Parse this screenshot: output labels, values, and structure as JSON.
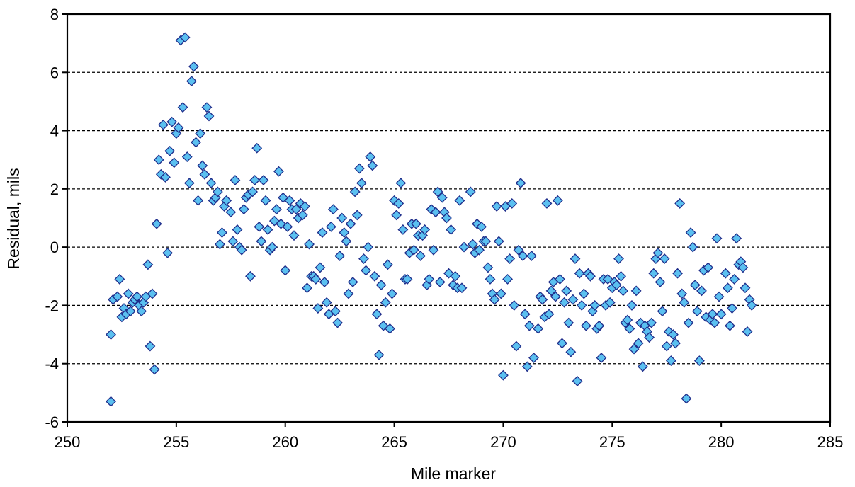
{
  "chart_data": {
    "type": "scatter",
    "xlabel": "Mile marker",
    "ylabel": "Residual, mils",
    "xlim": [
      250,
      285
    ],
    "ylim": [
      -6,
      8
    ],
    "xticks": [
      250,
      255,
      260,
      265,
      270,
      275,
      280,
      285
    ],
    "yticks": [
      -6,
      -4,
      -2,
      0,
      2,
      4,
      6,
      8
    ],
    "grid": "horizontal dashed at major y ticks (inner)",
    "legend": "none",
    "marker": "diamond",
    "colors": {
      "fill": "#5BC0F0",
      "stroke": "#1F2D8A"
    },
    "series": [
      {
        "points": [
          [
            252.0,
            -5.3
          ],
          [
            252.0,
            -3.0
          ],
          [
            252.1,
            -1.8
          ],
          [
            252.3,
            -1.7
          ],
          [
            252.4,
            -1.1
          ],
          [
            252.5,
            -2.4
          ],
          [
            252.6,
            -2.1
          ],
          [
            252.7,
            -2.3
          ],
          [
            252.8,
            -1.6
          ],
          [
            252.9,
            -2.2
          ],
          [
            253.0,
            -1.9
          ],
          [
            253.1,
            -1.8
          ],
          [
            253.2,
            -1.7
          ],
          [
            253.3,
            -2.0
          ],
          [
            253.4,
            -2.2
          ],
          [
            253.5,
            -1.9
          ],
          [
            253.6,
            -1.7
          ],
          [
            253.7,
            -0.6
          ],
          [
            253.8,
            -3.4
          ],
          [
            253.9,
            -1.6
          ],
          [
            254.0,
            -4.2
          ],
          [
            254.1,
            0.8
          ],
          [
            254.2,
            3.0
          ],
          [
            254.3,
            2.5
          ],
          [
            254.4,
            4.2
          ],
          [
            254.5,
            2.4
          ],
          [
            254.6,
            -0.2
          ],
          [
            254.7,
            3.3
          ],
          [
            254.8,
            4.3
          ],
          [
            254.9,
            2.9
          ],
          [
            255.0,
            3.9
          ],
          [
            255.1,
            4.1
          ],
          [
            255.2,
            7.1
          ],
          [
            255.3,
            4.8
          ],
          [
            255.4,
            7.2
          ],
          [
            255.5,
            3.1
          ],
          [
            255.6,
            2.2
          ],
          [
            255.7,
            5.7
          ],
          [
            255.8,
            6.2
          ],
          [
            255.9,
            3.6
          ],
          [
            256.0,
            1.6
          ],
          [
            256.1,
            3.9
          ],
          [
            256.2,
            2.8
          ],
          [
            256.3,
            2.5
          ],
          [
            256.4,
            4.8
          ],
          [
            256.5,
            4.5
          ],
          [
            256.6,
            2.2
          ],
          [
            256.7,
            1.6
          ],
          [
            256.8,
            1.7
          ],
          [
            256.9,
            1.9
          ],
          [
            257.0,
            0.1
          ],
          [
            257.1,
            0.5
          ],
          [
            257.2,
            1.4
          ],
          [
            257.3,
            1.6
          ],
          [
            257.5,
            1.2
          ],
          [
            257.6,
            0.2
          ],
          [
            257.7,
            2.3
          ],
          [
            257.8,
            0.6
          ],
          [
            257.9,
            0.0
          ],
          [
            258.0,
            -0.1
          ],
          [
            258.1,
            1.3
          ],
          [
            258.2,
            1.7
          ],
          [
            258.3,
            1.8
          ],
          [
            258.4,
            -1.0
          ],
          [
            258.5,
            1.9
          ],
          [
            258.6,
            2.3
          ],
          [
            258.7,
            3.4
          ],
          [
            258.8,
            0.7
          ],
          [
            258.9,
            0.2
          ],
          [
            259.0,
            2.3
          ],
          [
            259.1,
            1.6
          ],
          [
            259.2,
            0.6
          ],
          [
            259.3,
            -0.1
          ],
          [
            259.4,
            0.0
          ],
          [
            259.5,
            0.9
          ],
          [
            259.6,
            1.3
          ],
          [
            259.7,
            2.6
          ],
          [
            259.8,
            0.8
          ],
          [
            259.9,
            1.7
          ],
          [
            260.0,
            -0.8
          ],
          [
            260.1,
            0.7
          ],
          [
            260.2,
            1.6
          ],
          [
            260.3,
            1.3
          ],
          [
            260.4,
            0.4
          ],
          [
            260.5,
            1.3
          ],
          [
            260.6,
            1.0
          ],
          [
            260.7,
            1.5
          ],
          [
            260.8,
            1.1
          ],
          [
            260.9,
            1.4
          ],
          [
            261.0,
            -1.4
          ],
          [
            261.1,
            0.1
          ],
          [
            261.2,
            -1.0
          ],
          [
            261.3,
            -1.0
          ],
          [
            261.4,
            -1.1
          ],
          [
            261.5,
            -2.1
          ],
          [
            261.6,
            -0.7
          ],
          [
            261.7,
            0.5
          ],
          [
            261.8,
            -1.2
          ],
          [
            261.9,
            -1.9
          ],
          [
            262.0,
            -2.3
          ],
          [
            262.1,
            0.7
          ],
          [
            262.2,
            1.3
          ],
          [
            262.3,
            -2.2
          ],
          [
            262.4,
            -2.6
          ],
          [
            262.5,
            -0.3
          ],
          [
            262.6,
            1.0
          ],
          [
            262.7,
            0.5
          ],
          [
            262.8,
            0.2
          ],
          [
            262.9,
            -1.6
          ],
          [
            263.0,
            0.8
          ],
          [
            263.1,
            -1.2
          ],
          [
            263.2,
            1.9
          ],
          [
            263.3,
            1.1
          ],
          [
            263.4,
            2.7
          ],
          [
            263.5,
            2.2
          ],
          [
            263.6,
            -0.4
          ],
          [
            263.7,
            -0.8
          ],
          [
            263.8,
            0.0
          ],
          [
            263.9,
            3.1
          ],
          [
            264.0,
            2.8
          ],
          [
            264.1,
            -1.0
          ],
          [
            264.2,
            -2.3
          ],
          [
            264.3,
            -3.7
          ],
          [
            264.4,
            -1.3
          ],
          [
            264.5,
            -2.7
          ],
          [
            264.6,
            -1.9
          ],
          [
            264.7,
            -0.6
          ],
          [
            264.8,
            -2.8
          ],
          [
            264.9,
            -1.6
          ],
          [
            265.0,
            1.6
          ],
          [
            265.1,
            1.1
          ],
          [
            265.2,
            1.5
          ],
          [
            265.3,
            2.2
          ],
          [
            265.4,
            0.6
          ],
          [
            265.5,
            -1.1
          ],
          [
            265.6,
            -1.1
          ],
          [
            265.7,
            -0.2
          ],
          [
            265.8,
            0.8
          ],
          [
            265.9,
            -0.1
          ],
          [
            266.0,
            0.8
          ],
          [
            266.1,
            0.4
          ],
          [
            266.2,
            -0.3
          ],
          [
            266.3,
            0.4
          ],
          [
            266.4,
            0.6
          ],
          [
            266.5,
            -1.3
          ],
          [
            266.6,
            -1.1
          ],
          [
            266.7,
            1.3
          ],
          [
            266.8,
            -0.1
          ],
          [
            266.9,
            1.2
          ],
          [
            267.0,
            1.9
          ],
          [
            267.1,
            -1.2
          ],
          [
            267.2,
            1.7
          ],
          [
            267.3,
            1.2
          ],
          [
            267.4,
            1.0
          ],
          [
            267.5,
            -0.9
          ],
          [
            267.6,
            0.6
          ],
          [
            267.7,
            -1.3
          ],
          [
            267.8,
            -1.0
          ],
          [
            267.9,
            -1.4
          ],
          [
            268.0,
            1.6
          ],
          [
            268.1,
            -1.4
          ],
          [
            268.2,
            0.0
          ],
          [
            268.5,
            1.9
          ],
          [
            268.6,
            0.1
          ],
          [
            268.7,
            -0.2
          ],
          [
            268.8,
            0.8
          ],
          [
            268.9,
            -0.1
          ],
          [
            269.0,
            0.7
          ],
          [
            269.1,
            0.2
          ],
          [
            269.2,
            0.2
          ],
          [
            269.3,
            -0.7
          ],
          [
            269.4,
            -1.1
          ],
          [
            269.5,
            -1.6
          ],
          [
            269.6,
            -1.8
          ],
          [
            269.7,
            1.4
          ],
          [
            269.8,
            0.2
          ],
          [
            269.9,
            -1.6
          ],
          [
            270.0,
            -4.4
          ],
          [
            270.1,
            1.4
          ],
          [
            270.2,
            -1.1
          ],
          [
            270.3,
            -0.4
          ],
          [
            270.4,
            1.5
          ],
          [
            270.5,
            -2.0
          ],
          [
            270.6,
            -3.4
          ],
          [
            270.7,
            -0.1
          ],
          [
            270.8,
            2.2
          ],
          [
            270.9,
            -0.3
          ],
          [
            271.0,
            -2.3
          ],
          [
            271.1,
            -4.1
          ],
          [
            271.2,
            -2.7
          ],
          [
            271.3,
            -0.3
          ],
          [
            271.4,
            -3.8
          ],
          [
            271.6,
            -2.8
          ],
          [
            271.7,
            -1.7
          ],
          [
            271.8,
            -1.8
          ],
          [
            271.9,
            -2.4
          ],
          [
            272.0,
            1.5
          ],
          [
            272.1,
            -2.3
          ],
          [
            272.2,
            -1.5
          ],
          [
            272.3,
            -1.2
          ],
          [
            272.4,
            -1.7
          ],
          [
            272.5,
            1.6
          ],
          [
            272.6,
            -1.1
          ],
          [
            272.7,
            -3.3
          ],
          [
            272.8,
            -1.9
          ],
          [
            272.9,
            -1.5
          ],
          [
            273.0,
            -2.6
          ],
          [
            273.1,
            -3.6
          ],
          [
            273.2,
            -1.8
          ],
          [
            273.3,
            -0.4
          ],
          [
            273.4,
            -4.6
          ],
          [
            273.5,
            -0.9
          ],
          [
            273.6,
            -2.0
          ],
          [
            273.7,
            -1.6
          ],
          [
            273.8,
            -2.7
          ],
          [
            273.9,
            -0.9
          ],
          [
            274.0,
            -1.0
          ],
          [
            274.1,
            -2.2
          ],
          [
            274.2,
            -2.0
          ],
          [
            274.3,
            -2.8
          ],
          [
            274.4,
            -2.7
          ],
          [
            274.5,
            -3.8
          ],
          [
            274.6,
            -1.1
          ],
          [
            274.7,
            -2.0
          ],
          [
            274.8,
            -1.1
          ],
          [
            274.9,
            -1.9
          ],
          [
            275.0,
            -1.4
          ],
          [
            275.1,
            -1.2
          ],
          [
            275.2,
            -1.3
          ],
          [
            275.3,
            -0.4
          ],
          [
            275.4,
            -1.0
          ],
          [
            275.5,
            -1.5
          ],
          [
            275.6,
            -2.6
          ],
          [
            275.7,
            -2.5
          ],
          [
            275.8,
            -2.8
          ],
          [
            275.9,
            -2.0
          ],
          [
            276.0,
            -3.5
          ],
          [
            276.1,
            -1.5
          ],
          [
            276.2,
            -3.3
          ],
          [
            276.3,
            -2.6
          ],
          [
            276.4,
            -4.1
          ],
          [
            276.5,
            -2.7
          ],
          [
            276.6,
            -2.9
          ],
          [
            276.7,
            -3.1
          ],
          [
            276.8,
            -2.6
          ],
          [
            276.9,
            -0.9
          ],
          [
            277.0,
            -0.4
          ],
          [
            277.1,
            -0.2
          ],
          [
            277.2,
            -1.2
          ],
          [
            277.3,
            -2.2
          ],
          [
            277.4,
            -0.4
          ],
          [
            277.5,
            -3.4
          ],
          [
            277.6,
            -2.9
          ],
          [
            277.7,
            -3.9
          ],
          [
            277.8,
            -3.0
          ],
          [
            277.9,
            -3.3
          ],
          [
            278.0,
            -0.9
          ],
          [
            278.1,
            1.5
          ],
          [
            278.2,
            -1.6
          ],
          [
            278.3,
            -1.9
          ],
          [
            278.4,
            -5.2
          ],
          [
            278.5,
            -2.6
          ],
          [
            278.6,
            0.5
          ],
          [
            278.7,
            0.0
          ],
          [
            278.8,
            -1.3
          ],
          [
            278.9,
            -2.2
          ],
          [
            279.0,
            -3.9
          ],
          [
            279.1,
            -1.5
          ],
          [
            279.2,
            -0.8
          ],
          [
            279.3,
            -2.4
          ],
          [
            279.4,
            -0.7
          ],
          [
            279.5,
            -2.5
          ],
          [
            279.6,
            -2.3
          ],
          [
            279.7,
            -2.6
          ],
          [
            279.8,
            0.3
          ],
          [
            279.9,
            -1.7
          ],
          [
            280.0,
            -2.3
          ],
          [
            280.2,
            -0.9
          ],
          [
            280.3,
            -1.4
          ],
          [
            280.4,
            -2.7
          ],
          [
            280.5,
            -2.1
          ],
          [
            280.6,
            -1.1
          ],
          [
            280.7,
            0.3
          ],
          [
            280.8,
            -0.6
          ],
          [
            280.9,
            -0.5
          ],
          [
            281.0,
            -0.7
          ],
          [
            281.1,
            -1.4
          ],
          [
            281.2,
            -2.9
          ],
          [
            281.3,
            -1.8
          ],
          [
            281.4,
            -2.0
          ]
        ]
      }
    ]
  }
}
